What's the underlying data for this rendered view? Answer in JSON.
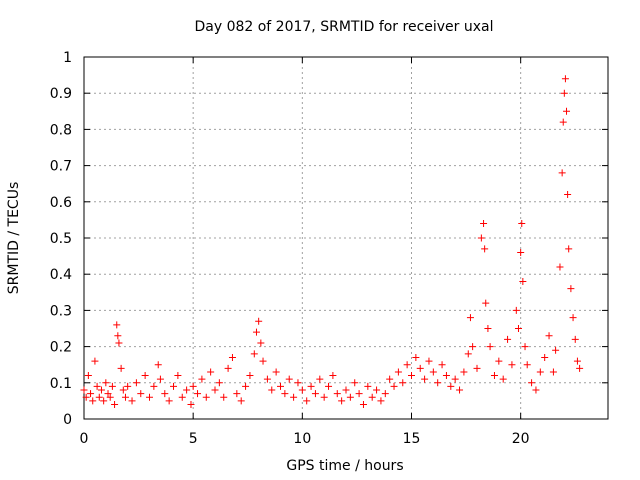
{
  "chart_data": {
    "type": "scatter",
    "title": "Day 082 of 2017, SRMTID for receiver uxal",
    "xlabel": "GPS time / hours",
    "ylabel": "SRMTID / TECUs",
    "xlim": [
      0,
      24
    ],
    "ylim": [
      0,
      1
    ],
    "xticks": [
      0,
      5,
      10,
      15,
      20
    ],
    "xtick_labels": [
      "0",
      "5",
      "10",
      "15",
      "20"
    ],
    "yticks": [
      0,
      0.1,
      0.2,
      0.3,
      0.4,
      0.5,
      0.6,
      0.7,
      0.8,
      0.9,
      1
    ],
    "ytick_labels": [
      "0",
      "0.1",
      "0.2",
      "0.3",
      "0.4",
      "0.5",
      "0.6",
      "0.7",
      "0.8",
      "0.9",
      "1"
    ],
    "grid": true,
    "marker": "+",
    "color": "#ff0000",
    "series": [
      {
        "name": "SRMTID",
        "points": [
          [
            0.0,
            0.08
          ],
          [
            0.1,
            0.06
          ],
          [
            0.2,
            0.12
          ],
          [
            0.3,
            0.07
          ],
          [
            0.4,
            0.05
          ],
          [
            0.5,
            0.16
          ],
          [
            0.6,
            0.09
          ],
          [
            0.7,
            0.06
          ],
          [
            0.8,
            0.08
          ],
          [
            0.9,
            0.05
          ],
          [
            1.0,
            0.1
          ],
          [
            1.1,
            0.07
          ],
          [
            1.2,
            0.06
          ],
          [
            1.3,
            0.09
          ],
          [
            1.4,
            0.04
          ],
          [
            1.5,
            0.26
          ],
          [
            1.55,
            0.23
          ],
          [
            1.6,
            0.21
          ],
          [
            1.7,
            0.14
          ],
          [
            1.8,
            0.08
          ],
          [
            1.9,
            0.06
          ],
          [
            2.0,
            0.09
          ],
          [
            2.2,
            0.05
          ],
          [
            2.4,
            0.1
          ],
          [
            2.6,
            0.07
          ],
          [
            2.8,
            0.12
          ],
          [
            3.0,
            0.06
          ],
          [
            3.2,
            0.09
          ],
          [
            3.4,
            0.15
          ],
          [
            3.5,
            0.11
          ],
          [
            3.7,
            0.07
          ],
          [
            3.9,
            0.05
          ],
          [
            4.1,
            0.09
          ],
          [
            4.3,
            0.12
          ],
          [
            4.5,
            0.06
          ],
          [
            4.7,
            0.08
          ],
          [
            4.9,
            0.04
          ],
          [
            5.0,
            0.09
          ],
          [
            5.2,
            0.07
          ],
          [
            5.4,
            0.11
          ],
          [
            5.6,
            0.06
          ],
          [
            5.8,
            0.13
          ],
          [
            6.0,
            0.08
          ],
          [
            6.2,
            0.1
          ],
          [
            6.4,
            0.06
          ],
          [
            6.6,
            0.14
          ],
          [
            6.8,
            0.17
          ],
          [
            7.0,
            0.07
          ],
          [
            7.2,
            0.05
          ],
          [
            7.4,
            0.09
          ],
          [
            7.6,
            0.12
          ],
          [
            7.8,
            0.18
          ],
          [
            7.9,
            0.24
          ],
          [
            8.0,
            0.27
          ],
          [
            8.1,
            0.21
          ],
          [
            8.2,
            0.16
          ],
          [
            8.4,
            0.11
          ],
          [
            8.6,
            0.08
          ],
          [
            8.8,
            0.13
          ],
          [
            9.0,
            0.09
          ],
          [
            9.2,
            0.07
          ],
          [
            9.4,
            0.11
          ],
          [
            9.6,
            0.06
          ],
          [
            9.8,
            0.1
          ],
          [
            10.0,
            0.08
          ],
          [
            10.2,
            0.05
          ],
          [
            10.4,
            0.09
          ],
          [
            10.6,
            0.07
          ],
          [
            10.8,
            0.11
          ],
          [
            11.0,
            0.06
          ],
          [
            11.2,
            0.09
          ],
          [
            11.4,
            0.12
          ],
          [
            11.6,
            0.07
          ],
          [
            11.8,
            0.05
          ],
          [
            12.0,
            0.08
          ],
          [
            12.2,
            0.06
          ],
          [
            12.4,
            0.1
          ],
          [
            12.6,
            0.07
          ],
          [
            12.8,
            0.04
          ],
          [
            13.0,
            0.09
          ],
          [
            13.2,
            0.06
          ],
          [
            13.4,
            0.08
          ],
          [
            13.6,
            0.05
          ],
          [
            13.8,
            0.07
          ],
          [
            14.0,
            0.11
          ],
          [
            14.2,
            0.09
          ],
          [
            14.4,
            0.13
          ],
          [
            14.6,
            0.1
          ],
          [
            14.8,
            0.15
          ],
          [
            15.0,
            0.12
          ],
          [
            15.2,
            0.17
          ],
          [
            15.4,
            0.14
          ],
          [
            15.6,
            0.11
          ],
          [
            15.8,
            0.16
          ],
          [
            16.0,
            0.13
          ],
          [
            16.2,
            0.1
          ],
          [
            16.4,
            0.15
          ],
          [
            16.6,
            0.12
          ],
          [
            16.8,
            0.09
          ],
          [
            17.0,
            0.11
          ],
          [
            17.2,
            0.08
          ],
          [
            17.4,
            0.13
          ],
          [
            17.6,
            0.18
          ],
          [
            17.7,
            0.28
          ],
          [
            17.8,
            0.2
          ],
          [
            18.0,
            0.14
          ],
          [
            18.2,
            0.5
          ],
          [
            18.3,
            0.54
          ],
          [
            18.35,
            0.47
          ],
          [
            18.4,
            0.32
          ],
          [
            18.5,
            0.25
          ],
          [
            18.6,
            0.2
          ],
          [
            18.8,
            0.12
          ],
          [
            19.0,
            0.16
          ],
          [
            19.2,
            0.11
          ],
          [
            19.4,
            0.22
          ],
          [
            19.6,
            0.15
          ],
          [
            19.8,
            0.3
          ],
          [
            19.9,
            0.25
          ],
          [
            20.0,
            0.46
          ],
          [
            20.05,
            0.54
          ],
          [
            20.1,
            0.38
          ],
          [
            20.2,
            0.2
          ],
          [
            20.3,
            0.15
          ],
          [
            20.5,
            0.1
          ],
          [
            20.7,
            0.08
          ],
          [
            20.9,
            0.13
          ],
          [
            21.1,
            0.17
          ],
          [
            21.3,
            0.23
          ],
          [
            21.5,
            0.13
          ],
          [
            21.6,
            0.19
          ],
          [
            21.8,
            0.42
          ],
          [
            21.9,
            0.68
          ],
          [
            21.95,
            0.82
          ],
          [
            22.0,
            0.9
          ],
          [
            22.05,
            0.94
          ],
          [
            22.1,
            0.85
          ],
          [
            22.15,
            0.62
          ],
          [
            22.2,
            0.47
          ],
          [
            22.3,
            0.36
          ],
          [
            22.4,
            0.28
          ],
          [
            22.5,
            0.22
          ],
          [
            22.6,
            0.16
          ],
          [
            22.7,
            0.14
          ]
        ]
      }
    ]
  }
}
